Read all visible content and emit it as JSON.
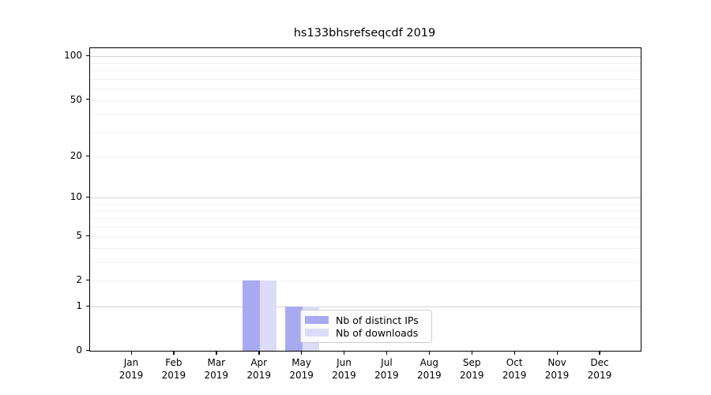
{
  "chart_data": {
    "type": "bar",
    "title": "hs133bhsrefseqcdf 2019",
    "categories": [
      "Jan",
      "Feb",
      "Mar",
      "Apr",
      "May",
      "Jun",
      "Jul",
      "Aug",
      "Sep",
      "Oct",
      "Nov",
      "Dec"
    ],
    "year_label": "2019",
    "series": [
      {
        "name": "Nb of distinct IPs",
        "color": "#a9a9f2",
        "values": [
          0,
          0,
          0,
          2,
          1,
          0,
          0,
          0,
          0,
          0,
          0,
          0
        ]
      },
      {
        "name": "Nb of downloads",
        "color": "#dcdcf8",
        "values": [
          0,
          0,
          0,
          2,
          1,
          0,
          0,
          0,
          0,
          0,
          0,
          0
        ]
      }
    ],
    "xlabel": "",
    "ylabel": "",
    "yscale": "log1p",
    "ylim": [
      0,
      113
    ],
    "y_ticks": [
      0,
      1,
      2,
      5,
      10,
      20,
      50,
      100
    ],
    "y_minor_gridlines": [
      2,
      3,
      4,
      5,
      6,
      7,
      8,
      9,
      20,
      30,
      40,
      50,
      60,
      70,
      80,
      90
    ],
    "y_major_gridlines": [
      1,
      10,
      100
    ],
    "grid": "horizontal",
    "legend_position": "inside-bottom-center"
  },
  "colors": {
    "major_grid": "#d4d4d4",
    "minor_grid": "#f1f1f1",
    "axis": "#000000",
    "legend_border": "#cccccc",
    "background": "#ffffff"
  }
}
